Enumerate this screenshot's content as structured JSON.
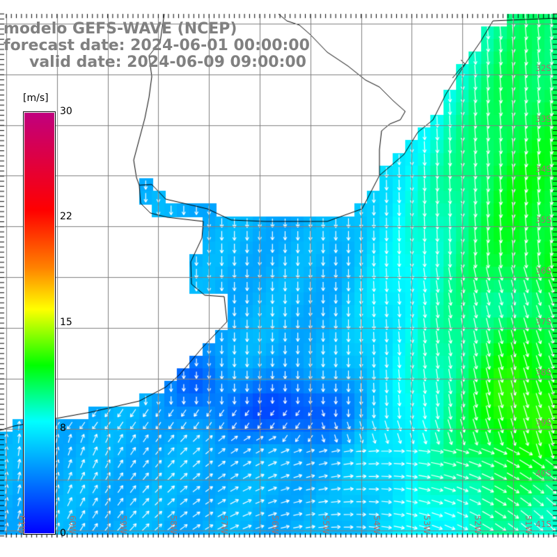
{
  "title": {
    "line1": "modelo GEFS-WAVE (NCEP)",
    "line2": "forecast date: 2024-06-01 00:00:00",
    "line3": "valid date: 2024-06-09 09:00:00"
  },
  "colorbar": {
    "unit": "[m/s]",
    "ticks": [
      "30",
      "22",
      "15",
      "8",
      "0"
    ],
    "colors": [
      "#0000ff",
      "#00ffff",
      "#00ff00",
      "#ffff00",
      "#ff8000",
      "#ff0000",
      "#c0007f"
    ]
  },
  "grid": {
    "lat_labels": [
      "32S",
      "33S",
      "34S",
      "35S",
      "36S",
      "37S",
      "38S",
      "39S",
      "40S",
      "41S"
    ],
    "lon_labels": [
      "61W",
      "60W",
      "59W",
      "58W",
      "57W",
      "56W",
      "55W",
      "54W",
      "53W",
      "52W",
      "51W"
    ]
  },
  "map": {
    "field": "wind speed and direction",
    "land_color": "#ffffff",
    "coast_color": "#000000",
    "grid_color": "#808080"
  }
}
